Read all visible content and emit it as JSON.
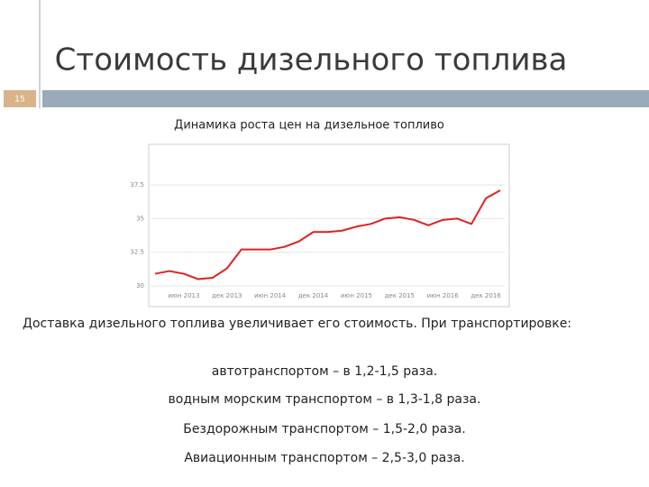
{
  "slide_title": "Стоимость дизельного топлива",
  "slide_number": "15",
  "intro": "Доставка дизельного топлива увеличивает его стоимость. При транспортировке:",
  "items": [
    "автотранспортом – в 1,2-1,5 раза.",
    "водным морским транспортом – в 1,3-1,8 раза.",
    "Бездорожным транспортом – 1,5-2,0 раза.",
    "Авиационным транспортом – 2,5-3,0 раза."
  ],
  "chart_data": {
    "type": "line",
    "title": "Динамика роста цен на дизельное топливо",
    "categories": [
      null,
      null,
      "июн 2013",
      null,
      null,
      "дек 2013",
      null,
      null,
      "июн 2014",
      null,
      null,
      "дек 2014",
      null,
      null,
      "июн 2015",
      null,
      null,
      "дек 2015",
      null,
      null,
      "июн 2016",
      null,
      null,
      "дек 2016",
      null
    ],
    "values": [
      30.9,
      31.1,
      30.9,
      30.5,
      30.6,
      31.3,
      32.7,
      32.7,
      32.7,
      32.9,
      33.3,
      34.0,
      34.0,
      34.1,
      34.4,
      34.6,
      35.0,
      35.1,
      34.9,
      34.5,
      34.9,
      35.0,
      34.6,
      36.5,
      37.1
    ],
    "color": "#e02020",
    "ylim": [
      30,
      37.5
    ],
    "yticks": [
      30,
      32.5,
      35,
      37.5
    ],
    "grid": true
  }
}
